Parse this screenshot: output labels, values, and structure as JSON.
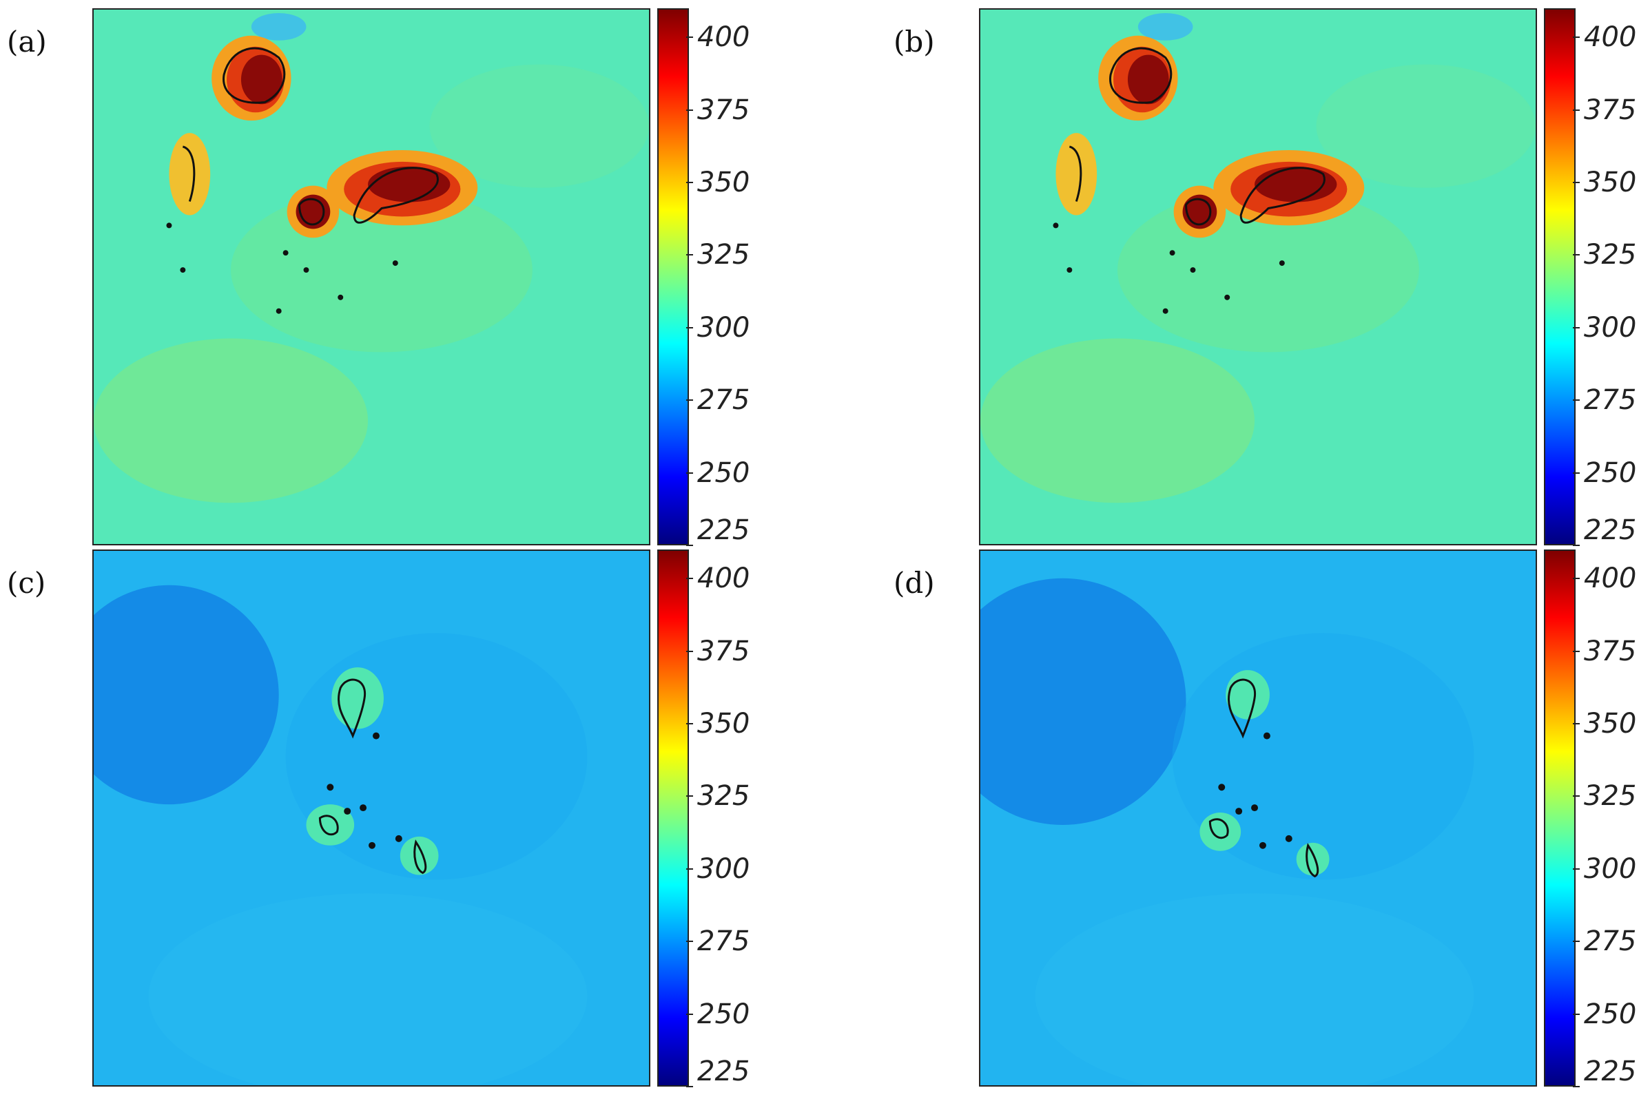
{
  "chart_data": [
    {
      "type": "heatmap",
      "panel_label": "(a)",
      "colorbar": {
        "ticks": [
          225,
          250,
          275,
          300,
          325,
          350,
          375,
          400
        ],
        "range": [
          225,
          410
        ],
        "colormap": "jet"
      },
      "background_value": 318,
      "has_hot_clusters": true
    },
    {
      "type": "heatmap",
      "panel_label": "(b)",
      "colorbar": {
        "ticks": [
          225,
          250,
          275,
          300,
          325,
          350,
          375,
          400
        ],
        "range": [
          225,
          410
        ],
        "colormap": "jet"
      },
      "background_value": 318,
      "has_hot_clusters": true
    },
    {
      "type": "heatmap",
      "panel_label": "(c)",
      "colorbar": {
        "ticks": [
          225,
          250,
          275,
          300,
          325,
          350,
          375,
          400
        ],
        "range": [
          225,
          410
        ],
        "colormap": "jet"
      },
      "background_value": 292,
      "has_hot_clusters": false
    },
    {
      "type": "heatmap",
      "panel_label": "(d)",
      "colorbar": {
        "ticks": [
          225,
          250,
          275,
          300,
          325,
          350,
          375,
          400
        ],
        "range": [
          225,
          410
        ],
        "colormap": "jet"
      },
      "background_value": 292,
      "has_hot_clusters": false
    }
  ]
}
